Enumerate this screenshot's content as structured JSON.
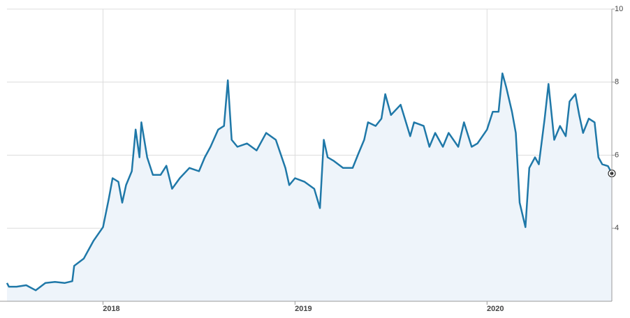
{
  "chart_data": {
    "type": "line",
    "x": [
      2017.5,
      2017.51,
      2017.55,
      2017.6,
      2017.65,
      2017.7,
      2017.75,
      2017.8,
      2017.84,
      2017.85,
      2017.9,
      2017.95,
      2018.0,
      2018.03,
      2018.05,
      2018.08,
      2018.1,
      2018.12,
      2018.15,
      2018.17,
      2018.19,
      2018.2,
      2018.23,
      2018.26,
      2018.3,
      2018.33,
      2018.36,
      2018.4,
      2018.45,
      2018.5,
      2018.53,
      2018.56,
      2018.6,
      2018.63,
      2018.65,
      2018.67,
      2018.7,
      2018.75,
      2018.8,
      2018.85,
      2018.9,
      2018.95,
      2018.97,
      2019.0,
      2019.05,
      2019.1,
      2019.13,
      2019.15,
      2019.17,
      2019.2,
      2019.25,
      2019.3,
      2019.33,
      2019.36,
      2019.38,
      2019.42,
      2019.45,
      2019.47,
      2019.5,
      2019.55,
      2019.6,
      2019.62,
      2019.67,
      2019.7,
      2019.73,
      2019.77,
      2019.8,
      2019.85,
      2019.88,
      2019.92,
      2019.95,
      2020.0,
      2020.03,
      2020.06,
      2020.08,
      2020.1,
      2020.13,
      2020.15,
      2020.17,
      2020.2,
      2020.22,
      2020.25,
      2020.27,
      2020.3,
      2020.32,
      2020.35,
      2020.38,
      2020.41,
      2020.43,
      2020.46,
      2020.48,
      2020.5,
      2020.53,
      2020.56,
      2020.58,
      2020.6,
      2020.63,
      2020.65
    ],
    "values": [
      2.5,
      2.4,
      2.4,
      2.44,
      2.3,
      2.5,
      2.53,
      2.5,
      2.55,
      2.97,
      3.17,
      3.65,
      4.03,
      4.8,
      5.37,
      5.27,
      4.7,
      5.18,
      5.56,
      6.7,
      5.94,
      6.9,
      5.94,
      5.46,
      5.46,
      5.71,
      5.08,
      5.37,
      5.65,
      5.56,
      5.94,
      6.23,
      6.7,
      6.8,
      8.05,
      6.42,
      6.23,
      6.32,
      6.13,
      6.61,
      6.42,
      5.65,
      5.18,
      5.37,
      5.27,
      5.08,
      4.55,
      6.42,
      5.94,
      5.85,
      5.65,
      5.65,
      6.04,
      6.42,
      6.9,
      6.8,
      7.0,
      7.67,
      7.1,
      7.38,
      6.52,
      6.9,
      6.8,
      6.23,
      6.61,
      6.23,
      6.61,
      6.23,
      6.9,
      6.23,
      6.32,
      6.7,
      7.19,
      7.19,
      8.24,
      7.86,
      7.19,
      6.61,
      4.7,
      4.03,
      5.65,
      5.94,
      5.75,
      7.0,
      7.95,
      6.42,
      6.8,
      6.52,
      7.47,
      7.67,
      7.1,
      6.61,
      7.0,
      6.9,
      5.94,
      5.75,
      5.7,
      5.5
    ],
    "color": "#1f78a8",
    "fill_color": "#eef4fa",
    "xlim": [
      2017.5,
      2020.65
    ],
    "xticks": [
      2018,
      2019,
      2020
    ],
    "ylim": [
      2,
      10
    ],
    "yticks": [
      4,
      6,
      8,
      10
    ],
    "grid": true
  }
}
